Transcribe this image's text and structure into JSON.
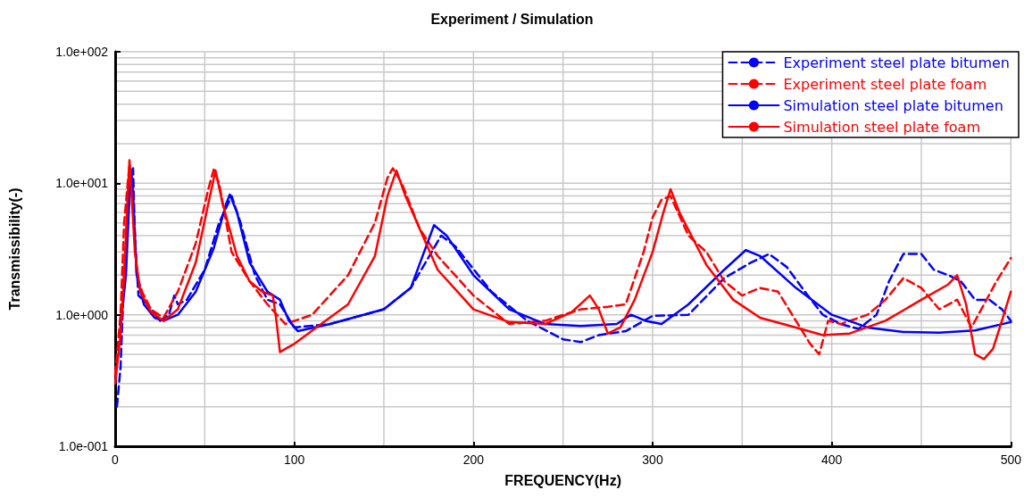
{
  "chart_data": {
    "type": "line",
    "title": "Experiment / Simulation",
    "xlabel": "FREQUENCY(Hz)",
    "ylabel": "Transmissibility(-)",
    "log": "y",
    "grid": true,
    "legend": "top right",
    "marker": "none",
    "xlim": [
      0,
      500
    ],
    "xticks": [
      0,
      {
        "value": 50,
        "label": null
      },
      100,
      {
        "value": 150,
        "label": null
      },
      200,
      {
        "value": 250,
        "label": null
      },
      300,
      {
        "value": 350,
        "label": null
      },
      400,
      {
        "value": 450,
        "label": null
      },
      500
    ],
    "ylim": [
      0.1,
      100
    ],
    "yticks": [
      {
        "value": 0.1,
        "label": "1.0e-001"
      },
      {
        "value": 0.2,
        "label": null
      },
      {
        "value": 0.3,
        "label": null
      },
      {
        "value": 0.4,
        "label": null
      },
      {
        "value": 0.5,
        "label": null
      },
      {
        "value": 0.6,
        "label": null
      },
      {
        "value": 0.7,
        "label": null
      },
      {
        "value": 0.8,
        "label": null
      },
      {
        "value": 0.9,
        "label": null
      },
      {
        "value": 1,
        "label": "1.0e+000"
      },
      {
        "value": 2,
        "label": null
      },
      {
        "value": 3,
        "label": null
      },
      {
        "value": 4,
        "label": null
      },
      {
        "value": 5,
        "label": null
      },
      {
        "value": 6,
        "label": null
      },
      {
        "value": 7,
        "label": null
      },
      {
        "value": 8,
        "label": null
      },
      {
        "value": 9,
        "label": null
      },
      {
        "value": 10,
        "label": "1.0e+001"
      },
      {
        "value": 20,
        "label": null
      },
      {
        "value": 30,
        "label": null
      },
      {
        "value": 40,
        "label": null
      },
      {
        "value": 50,
        "label": null
      },
      {
        "value": 60,
        "label": null
      },
      {
        "value": 70,
        "label": null
      },
      {
        "value": 80,
        "label": null
      },
      {
        "value": 90,
        "label": null
      },
      {
        "value": 100,
        "label": "1.0e+002"
      }
    ],
    "series": [
      {
        "name": "Experiment steel plate bitumen",
        "color": "#0000ff",
        "line_style": "dashed",
        "x": [
          1,
          3,
          5,
          7,
          8,
          10,
          11,
          13,
          18,
          25,
          30,
          33,
          35,
          40,
          50,
          58,
          65,
          70,
          78,
          85,
          92,
          100,
          120,
          150,
          165,
          182,
          190,
          210,
          230,
          250,
          260,
          270,
          285,
          300,
          320,
          340,
          355,
          365,
          375,
          385,
          395,
          405,
          415,
          425,
          432,
          440,
          450,
          457,
          465,
          472,
          480,
          488,
          495,
          500
        ],
        "values": [
          0.2,
          0.4,
          2,
          6,
          10,
          13,
          4,
          1.4,
          1.2,
          0.9,
          1.0,
          1.4,
          1.2,
          1.3,
          2.2,
          5,
          8,
          5,
          2,
          1.3,
          1.2,
          0.8,
          0.85,
          1.1,
          1.6,
          4,
          3.3,
          1.5,
          0.9,
          0.65,
          0.62,
          0.7,
          0.75,
          0.98,
          1.0,
          1.9,
          2.5,
          2.9,
          2.3,
          1.5,
          1.0,
          0.85,
          0.78,
          1.0,
          1.8,
          2.9,
          2.9,
          2.2,
          2.0,
          1.8,
          1.3,
          1.3,
          1.1,
          0.9
        ]
      },
      {
        "name": "Experiment steel plate foam",
        "color": "#ff0000",
        "line_style": "dashed",
        "x": [
          0,
          3,
          5,
          7,
          8,
          10,
          12,
          15,
          20,
          27,
          35,
          45,
          52,
          55,
          58,
          65,
          75,
          85,
          95,
          110,
          130,
          145,
          152,
          155,
          160,
          170,
          180,
          200,
          220,
          240,
          260,
          275,
          285,
          295,
          300,
          305,
          310,
          320,
          330,
          340,
          350,
          360,
          370,
          380,
          388,
          393,
          398,
          405,
          420,
          430,
          440,
          450,
          460,
          470,
          478,
          485,
          492,
          500
        ],
        "values": [
          0.35,
          1,
          5,
          10,
          14,
          8,
          2,
          1.5,
          1.1,
          0.95,
          1.5,
          3.5,
          9,
          12.7,
          10,
          3,
          1.8,
          1.2,
          0.85,
          1.0,
          2,
          5,
          11,
          13,
          10,
          4.5,
          2.8,
          1.4,
          0.85,
          0.9,
          1.1,
          1.15,
          1.2,
          3,
          5.5,
          7.5,
          8,
          4,
          3,
          1.8,
          1.4,
          1.6,
          1.5,
          0.9,
          0.6,
          0.5,
          0.9,
          0.85,
          1.0,
          1.3,
          1.9,
          1.6,
          1.1,
          1.3,
          0.8,
          1.2,
          1.8,
          2.7
        ]
      },
      {
        "name": "Simulation steel plate bitumen",
        "color": "#0000ff",
        "line_style": "solid",
        "x": [
          3,
          6,
          8,
          9,
          10,
          12,
          16,
          22,
          27,
          35,
          45,
          55,
          62,
          64,
          68,
          75,
          85,
          92,
          97,
          102,
          120,
          150,
          165,
          178,
          185,
          200,
          220,
          240,
          260,
          280,
          288,
          296,
          305,
          320,
          340,
          352,
          360,
          380,
          400,
          420,
          440,
          460,
          480,
          500
        ],
        "values": [
          0.8,
          2,
          8,
          12.7,
          8,
          2,
          1.2,
          0.95,
          0.9,
          1.0,
          1.5,
          3.2,
          7,
          8.2,
          6,
          2.5,
          1.5,
          1.3,
          0.9,
          0.75,
          0.85,
          1.1,
          1.6,
          4.8,
          4,
          2,
          1.1,
          0.85,
          0.82,
          0.85,
          1.0,
          0.9,
          0.85,
          1.2,
          2.2,
          3.1,
          2.8,
          1.6,
          1.0,
          0.8,
          0.74,
          0.73,
          0.76,
          0.88
        ]
      },
      {
        "name": "Simulation steel plate foam",
        "color": "#ff0000",
        "line_style": "solid",
        "x": [
          0,
          3,
          5,
          7,
          8,
          9,
          11,
          14,
          20,
          27,
          35,
          45,
          52,
          56,
          60,
          68,
          75,
          82,
          88,
          90,
          92,
          95,
          100,
          115,
          130,
          145,
          152,
          157,
          162,
          170,
          180,
          200,
          220,
          240,
          255,
          265,
          270,
          275,
          282,
          290,
          300,
          306,
          310,
          315,
          330,
          345,
          360,
          380,
          395,
          410,
          430,
          450,
          465,
          470,
          475,
          480,
          485,
          490,
          495,
          500
        ],
        "values": [
          0.3,
          0.7,
          2,
          8,
          15,
          9,
          3,
          1.5,
          1.05,
          0.9,
          1.1,
          2.5,
          7,
          12.5,
          7,
          2.8,
          1.8,
          1.5,
          1.4,
          0.9,
          0.52,
          0.55,
          0.6,
          0.85,
          1.2,
          2.8,
          8,
          12.5,
          8,
          4.5,
          2.2,
          1.1,
          0.88,
          0.85,
          1.05,
          1.4,
          1.1,
          0.72,
          0.8,
          1.3,
          3,
          6,
          9,
          6,
          2.4,
          1.3,
          0.95,
          0.8,
          0.7,
          0.72,
          0.9,
          1.3,
          1.7,
          2.0,
          1.2,
          0.5,
          0.46,
          0.55,
          0.9,
          1.5
        ]
      }
    ]
  }
}
